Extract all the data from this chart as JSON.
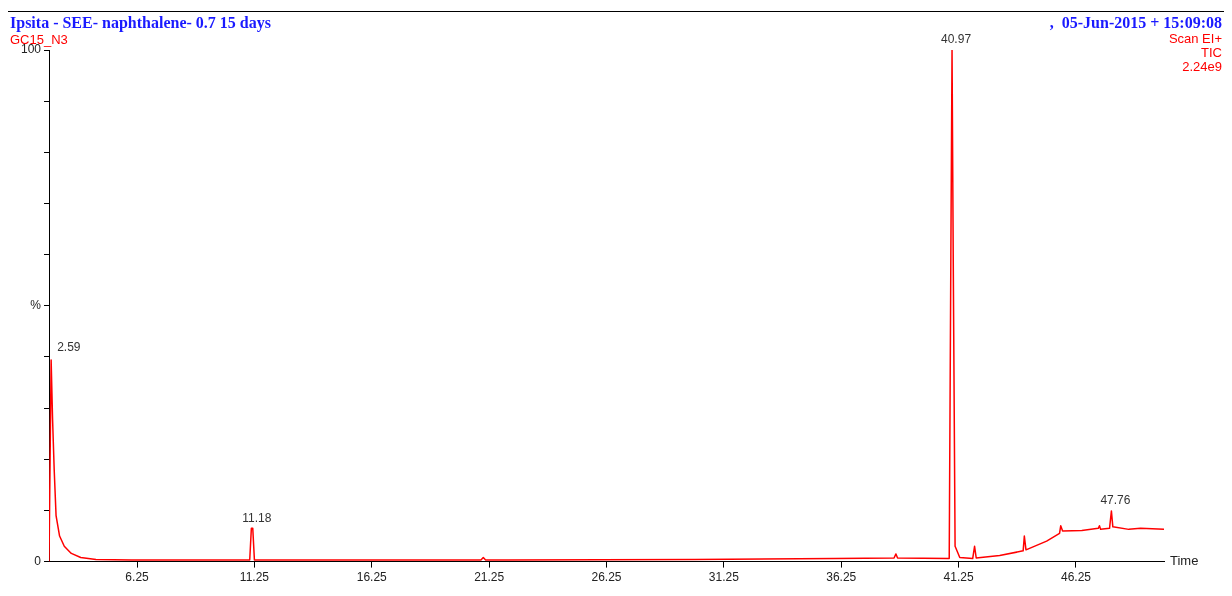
{
  "chart_data": {
    "type": "line",
    "title": "Ipsita - SEE- naphthalene- 0.7 15 days",
    "subtitle": ",  05-Jun-2015 + 15:09:08",
    "xlabel": "Time",
    "annotations": [
      "GC15_N3",
      "Scan EI+",
      "TIC",
      "2.24e9",
      {
        "text": "2.59",
        "x": 2.59,
        "y": 39.4
      },
      {
        "text": "11.18",
        "x": 11.18,
        "y": 6.5
      },
      {
        "text": "40.97",
        "x": 40.97,
        "y": 100
      },
      {
        "text": "47.76",
        "x": 47.76,
        "y": 9.9
      }
    ],
    "xlim": [
      2.5,
      50
    ],
    "xticks": [
      6.25,
      11.25,
      16.25,
      21.25,
      26.25,
      31.25,
      36.25,
      41.25,
      46.25
    ],
    "ylim": [
      0,
      100
    ],
    "yticks": [
      0,
      {
        "value": 10,
        "label": null
      },
      {
        "value": 20,
        "label": null
      },
      {
        "value": 30,
        "label": null
      },
      {
        "value": 40,
        "label": null
      },
      {
        "value": 50,
        "label": "%"
      },
      {
        "value": 60,
        "label": null
      },
      {
        "value": 70,
        "label": null
      },
      {
        "value": 80,
        "label": null
      },
      {
        "value": 90,
        "label": null
      },
      100
    ],
    "series": [
      {
        "color": "#ff0000",
        "x": [
          2.5,
          2.59,
          2.65,
          2.72,
          2.8,
          2.95,
          3.15,
          3.45,
          3.85,
          4.5,
          6,
          11.05,
          11.12,
          11.18,
          11.25,
          20.9,
          21,
          21.1,
          30,
          36,
          38.5,
          38.58,
          38.65,
          40.85,
          40.92,
          40.97,
          41.02,
          41.1,
          41.3,
          41.85,
          41.93,
          42,
          43,
          44,
          44.05,
          44.12,
          45,
          45.55,
          45.6,
          45.68,
          46.5,
          47.2,
          47.25,
          47.3,
          47.68,
          47.76,
          47.82,
          48.5,
          49,
          50
        ],
        "values": [
          0,
          39.4,
          28,
          18,
          9,
          5,
          3,
          1.6,
          0.8,
          0.4,
          0.3,
          0.3,
          6.5,
          6.5,
          0.3,
          0.3,
          0.8,
          0.3,
          0.4,
          0.6,
          0.7,
          1.5,
          0.7,
          0.6,
          60,
          100,
          60,
          3,
          0.8,
          0.6,
          3,
          0.7,
          1.2,
          2.1,
          5,
          2.3,
          4,
          5.5,
          7,
          6,
          6.1,
          6.5,
          7,
          6.3,
          6.5,
          9.9,
          6.8,
          6.3,
          6.5,
          6.3
        ]
      }
    ]
  }
}
